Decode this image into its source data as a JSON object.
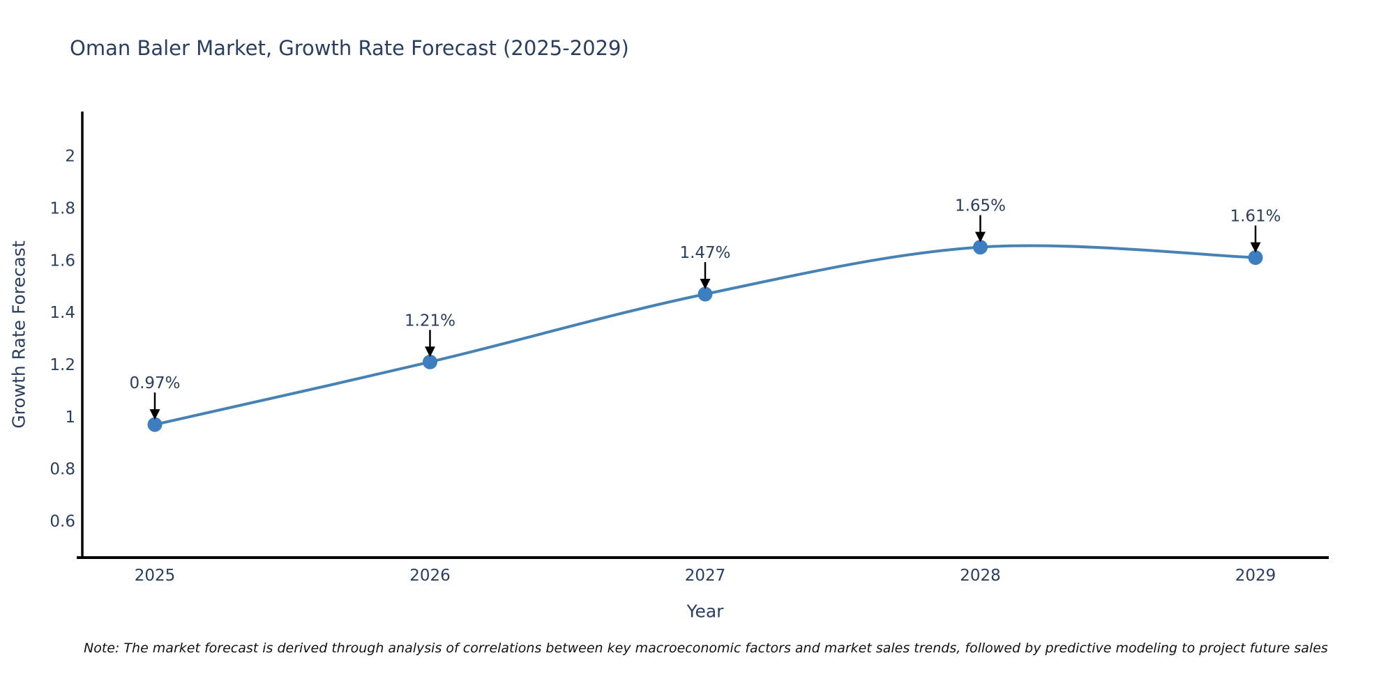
{
  "title": "Oman Baler Market, Growth Rate Forecast (2025-2029)",
  "note": "Note: The market forecast is derived through analysis of correlations between key macroeconomic factors and market sales trends, followed by predictive modeling to project future sales",
  "chart_data": {
    "type": "line",
    "title": "Oman Baler Market, Growth Rate Forecast (2025-2029)",
    "xlabel": "Year",
    "ylabel": "Growth Rate Forecast",
    "categories": [
      "2025",
      "2026",
      "2027",
      "2028",
      "2029"
    ],
    "values": [
      0.97,
      1.21,
      1.47,
      1.65,
      1.61
    ],
    "point_labels": [
      "0.97%",
      "1.21%",
      "1.47%",
      "1.65%",
      "1.61%"
    ],
    "yticks": [
      2,
      1.8,
      1.6,
      1.4,
      1.2,
      1,
      0.8,
      0.6
    ],
    "ylim": [
      0.46,
      2.17
    ],
    "line_shape": "spline",
    "grid": false,
    "legend": "none",
    "colors": {
      "line": "#4682b4",
      "marker": "#3c7ebf",
      "text": "#2a3f5f",
      "axis": "#000000",
      "annotation_arrow": "#000000",
      "note_text": "#111111",
      "background": "#ffffff"
    }
  }
}
